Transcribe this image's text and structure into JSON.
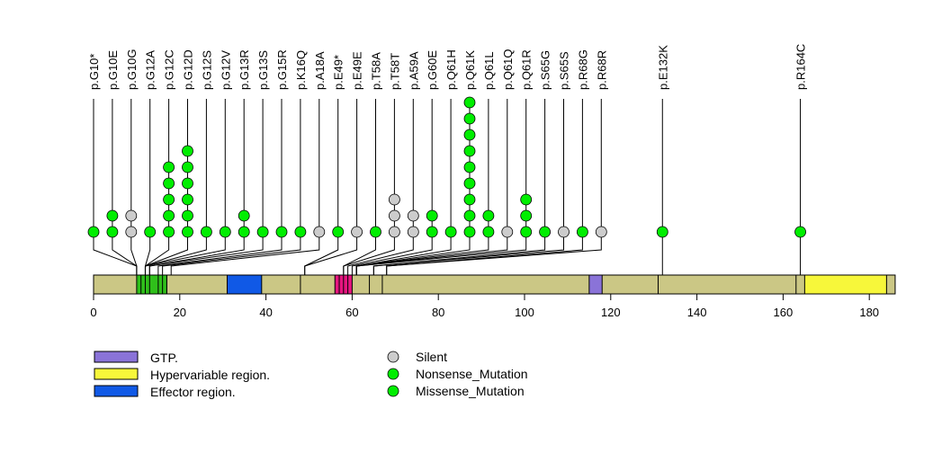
{
  "chart_data": {
    "type": "lollipop",
    "title": "",
    "protein_length": 186,
    "xlim": [
      0,
      186
    ],
    "x_ticks": [
      0,
      20,
      40,
      60,
      80,
      100,
      120,
      140,
      160,
      180
    ],
    "domains": [
      {
        "name": "Region A",
        "start": 10,
        "end": 17,
        "color": "#2fbf1a",
        "in_legend": false
      },
      {
        "name": "Effector region.",
        "start": 31,
        "end": 39,
        "color": "#1059e6",
        "in_legend": true
      },
      {
        "name": "Region B",
        "start": 56,
        "end": 60,
        "color": "#e6157f",
        "in_legend": false
      },
      {
        "name": "GTP.",
        "start": 115,
        "end": 118,
        "color": "#8a73d8",
        "in_legend": true
      },
      {
        "name": "Hypervariable region.",
        "start": 165,
        "end": 184,
        "color": "#f7f73a",
        "in_legend": true
      }
    ],
    "domain_internal_lines": [
      11,
      12,
      13,
      15,
      16,
      17,
      48,
      57,
      58,
      59,
      64,
      67,
      131,
      163
    ],
    "backbone_color": "#cbc785",
    "mutation_colors": {
      "Silent": "#cccccc",
      "Nonsense_Mutation": "#00ee00",
      "Missense_Mutation": "#00ee00"
    },
    "mutations": [
      {
        "label": "p.G10*",
        "pos": 10,
        "points": [
          "Nonsense_Mutation"
        ]
      },
      {
        "label": "p.G10E",
        "pos": 10,
        "points": [
          "Missense_Mutation",
          "Missense_Mutation"
        ]
      },
      {
        "label": "p.G10G",
        "pos": 10,
        "points": [
          "Silent",
          "Silent"
        ]
      },
      {
        "label": "p.G12A",
        "pos": 12,
        "points": [
          "Missense_Mutation"
        ]
      },
      {
        "label": "p.G12C",
        "pos": 12,
        "points": [
          "Missense_Mutation",
          "Missense_Mutation",
          "Missense_Mutation",
          "Missense_Mutation",
          "Missense_Mutation"
        ]
      },
      {
        "label": "p.G12D",
        "pos": 12,
        "points": [
          "Missense_Mutation",
          "Missense_Mutation",
          "Missense_Mutation",
          "Missense_Mutation",
          "Missense_Mutation",
          "Missense_Mutation"
        ]
      },
      {
        "label": "p.G12S",
        "pos": 12,
        "points": [
          "Missense_Mutation"
        ]
      },
      {
        "label": "p.G12V",
        "pos": 12,
        "points": [
          "Missense_Mutation"
        ]
      },
      {
        "label": "p.G13R",
        "pos": 13,
        "points": [
          "Missense_Mutation",
          "Missense_Mutation"
        ]
      },
      {
        "label": "p.G13S",
        "pos": 13,
        "points": [
          "Missense_Mutation"
        ]
      },
      {
        "label": "p.G15R",
        "pos": 15,
        "points": [
          "Missense_Mutation"
        ]
      },
      {
        "label": "p.K16Q",
        "pos": 16,
        "points": [
          "Missense_Mutation"
        ]
      },
      {
        "label": "p.A18A",
        "pos": 18,
        "points": [
          "Silent"
        ]
      },
      {
        "label": "p.E49*",
        "pos": 49,
        "points": [
          "Nonsense_Mutation"
        ]
      },
      {
        "label": "p.E49E",
        "pos": 49,
        "points": [
          "Silent"
        ]
      },
      {
        "label": "p.T58A",
        "pos": 58,
        "points": [
          "Missense_Mutation"
        ]
      },
      {
        "label": "p.T58T",
        "pos": 58,
        "points": [
          "Silent",
          "Silent",
          "Silent"
        ]
      },
      {
        "label": "p.A59A",
        "pos": 59,
        "points": [
          "Silent",
          "Silent"
        ]
      },
      {
        "label": "p.G60E",
        "pos": 60,
        "points": [
          "Missense_Mutation",
          "Missense_Mutation"
        ]
      },
      {
        "label": "p.Q61H",
        "pos": 61,
        "points": [
          "Missense_Mutation"
        ]
      },
      {
        "label": "p.Q61K",
        "pos": 61,
        "points": [
          "Missense_Mutation",
          "Missense_Mutation",
          "Missense_Mutation",
          "Missense_Mutation",
          "Missense_Mutation",
          "Missense_Mutation",
          "Missense_Mutation",
          "Missense_Mutation",
          "Missense_Mutation"
        ]
      },
      {
        "label": "p.Q61L",
        "pos": 61,
        "points": [
          "Missense_Mutation",
          "Missense_Mutation"
        ]
      },
      {
        "label": "p.Q61Q",
        "pos": 61,
        "points": [
          "Silent"
        ]
      },
      {
        "label": "p.Q61R",
        "pos": 61,
        "points": [
          "Missense_Mutation",
          "Missense_Mutation",
          "Missense_Mutation"
        ]
      },
      {
        "label": "p.S65G",
        "pos": 65,
        "points": [
          "Missense_Mutation"
        ]
      },
      {
        "label": "p.S65S",
        "pos": 65,
        "points": [
          "Silent"
        ]
      },
      {
        "label": "p.R68G",
        "pos": 68,
        "points": [
          "Missense_Mutation"
        ]
      },
      {
        "label": "p.R68R",
        "pos": 68,
        "points": [
          "Silent"
        ]
      },
      {
        "label": "p.E132K",
        "pos": 132,
        "points": [
          "Missense_Mutation"
        ],
        "direct": true
      },
      {
        "label": "p.R164C",
        "pos": 164,
        "points": [
          "Missense_Mutation"
        ],
        "direct": true
      }
    ],
    "legend_domains": [
      {
        "label": "GTP.",
        "color": "#8a73d8"
      },
      {
        "label": "Hypervariable region.",
        "color": "#f7f73a"
      },
      {
        "label": "Effector region.",
        "color": "#1059e6"
      }
    ],
    "legend_mutations": [
      {
        "label": "Silent",
        "color": "#cccccc"
      },
      {
        "label": "Nonsense_Mutation",
        "color": "#00ee00"
      },
      {
        "label": "Missense_Mutation",
        "color": "#00ee00"
      }
    ]
  }
}
